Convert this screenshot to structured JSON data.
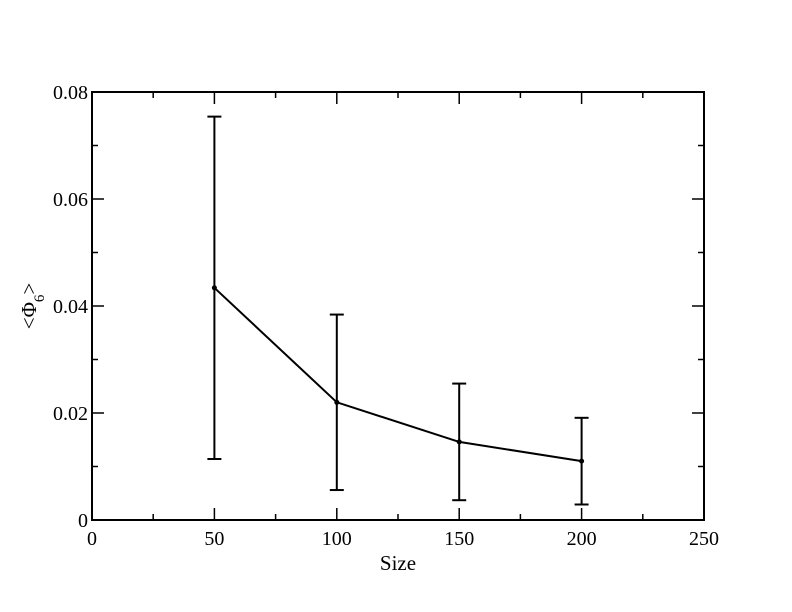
{
  "chart_data": {
    "type": "line",
    "title": "",
    "xlabel": "Size",
    "ylabel": {
      "main": "<Φ",
      "sub": "6",
      "close": ">"
    },
    "xlim": [
      0,
      250
    ],
    "ylim": [
      0,
      0.08
    ],
    "x_ticks": [
      0,
      50,
      100,
      150,
      200,
      250
    ],
    "x_tick_labels": [
      "0",
      "50",
      "100",
      "150",
      "200",
      "250"
    ],
    "y_ticks": [
      0,
      0.02,
      0.04,
      0.06,
      0.08
    ],
    "y_tick_labels": [
      "0",
      "0.02",
      "0.04",
      "0.06",
      "0.08"
    ],
    "grid": false,
    "legend": "none",
    "series": [
      {
        "x": [
          50,
          100,
          150,
          200
        ],
        "y": [
          0.0434,
          0.022,
          0.0146,
          0.011
        ],
        "error": [
          0.032,
          0.0164,
          0.0109,
          0.0081
        ],
        "color": "#000000"
      }
    ]
  }
}
